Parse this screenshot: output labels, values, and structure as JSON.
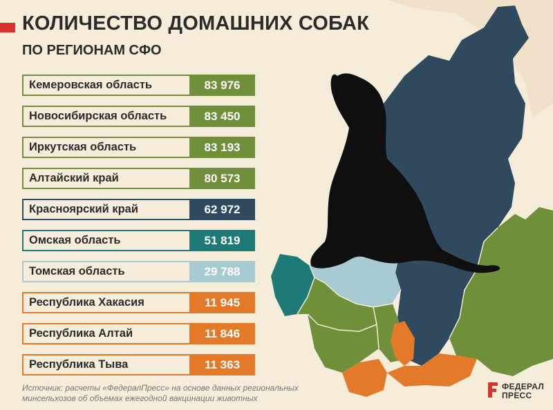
{
  "header": {
    "title": "КОЛИЧЕСТВО ДОМАШНИХ СОБАК",
    "subtitle": "ПО РЕГИОНАМ СФО"
  },
  "chart_data": {
    "type": "table",
    "title": "КОЛИЧЕСТВО ДОМАШНИХ СОБАК",
    "subtitle": "ПО РЕГИОНАМ СФО",
    "categories": [
      "Кемеровская область",
      "Новосибирская область",
      "Иркутская область",
      "Алтайский край",
      "Красноярский край",
      "Омская область",
      "Томская область",
      "Республика Хакасия",
      "Республика Алтай",
      "Республика Тыва"
    ],
    "values": [
      83976,
      83450,
      83193,
      80573,
      62972,
      51819,
      29788,
      11945,
      11846,
      11363
    ],
    "value_labels": [
      "83 976",
      "83 450",
      "83 193",
      "80 573",
      "62 972",
      "51 819",
      "29 788",
      "11 945",
      "11 846",
      "11 363"
    ],
    "colors": [
      "#6f8f3a",
      "#6f8f3a",
      "#6f8f3a",
      "#6f8f3a",
      "#2f4a5e",
      "#1d7a76",
      "#a7cbd0",
      "#e27a2a",
      "#e27a2a",
      "#e27a2a"
    ]
  },
  "colors": {
    "background": "#f5ecd9",
    "accent_red": "#d6342c",
    "green": "#6f8f3a",
    "dark_blue": "#2f4a5e",
    "teal": "#1d7a76",
    "light_blue": "#a7cbd0",
    "orange": "#e27a2a",
    "silhouette": "#0f0f0f"
  },
  "map": {
    "icons": [
      "dog-silhouette-icon",
      "region-map"
    ]
  },
  "footer": {
    "source_line1": "Источник: расчеты «ФедералПресс» на основе данных региональных",
    "source_line2": "минсельхозов об объемах ежегодной вакцинации животных",
    "logo_line1": "ФЕДЕРАЛ",
    "logo_line2": "ПРЕСС"
  }
}
